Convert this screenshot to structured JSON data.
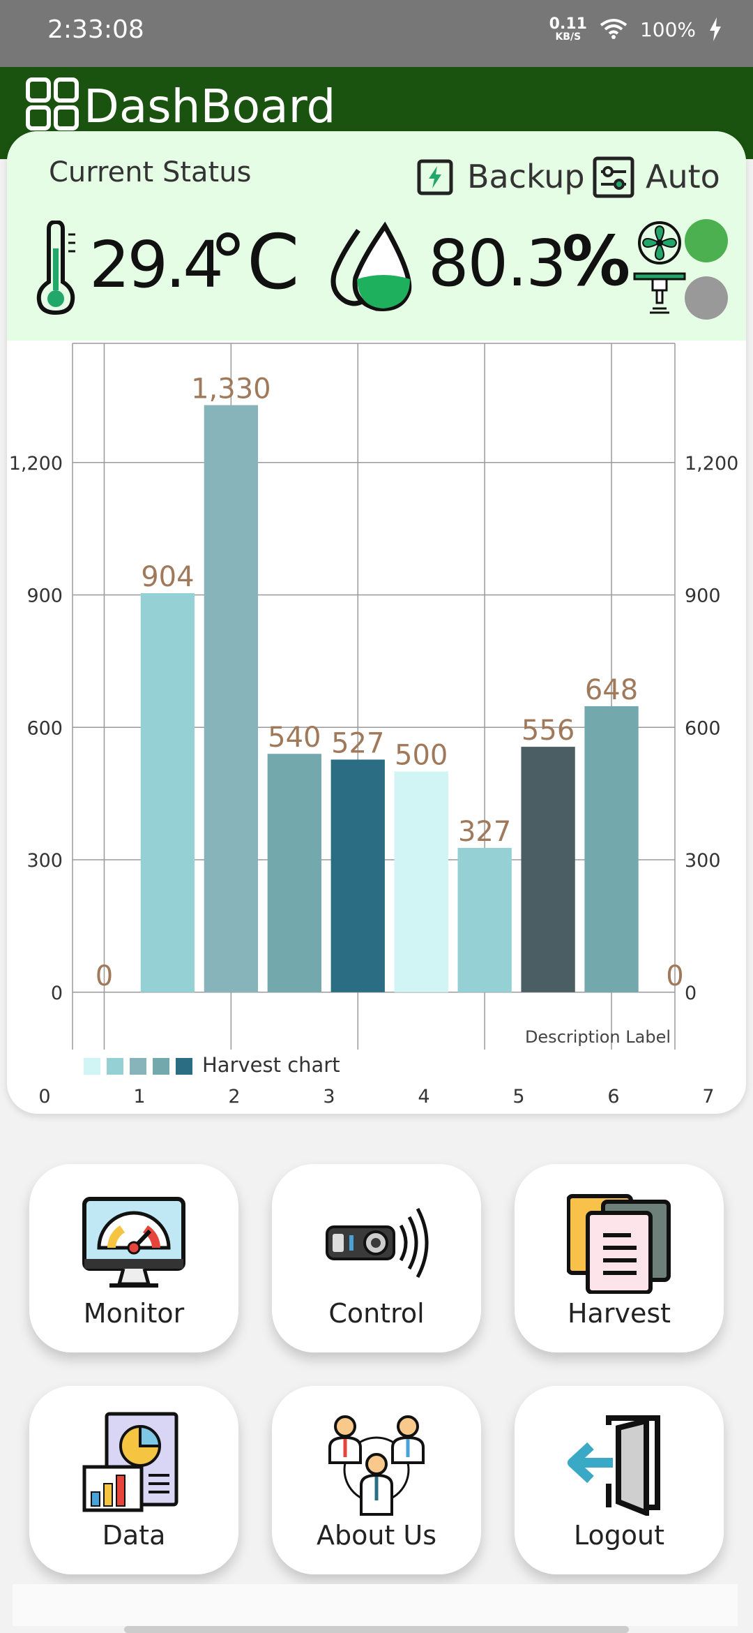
{
  "status_bar": {
    "time": "2:33:08",
    "net_speed": "0.11",
    "net_unit": "KB/S",
    "battery": "100%"
  },
  "app": {
    "title": "DashBoard",
    "header_color": "#1a5210"
  },
  "status": {
    "title": "Current Status",
    "backup_label": "Backup",
    "auto_label": "Auto",
    "temperature": "29.4",
    "temperature_unit": "°C",
    "humidity": "80.3",
    "humidity_unit": "%",
    "fan_state_color": "#4caf50",
    "sprinkler_state_color": "#999999"
  },
  "chart_data": {
    "type": "bar",
    "x": [
      0,
      1,
      2,
      3,
      4,
      5,
      6,
      7,
      8,
      9
    ],
    "values": [
      0,
      904,
      1330,
      540,
      527,
      500,
      327,
      556,
      648,
      0
    ],
    "value_labels": [
      "0",
      "904",
      "1,330",
      "540",
      "527",
      "500",
      "327",
      "556",
      "648",
      "0"
    ],
    "colors": [
      "#ffffff",
      "#95d1d4",
      "#87b4bb",
      "#73a9ad",
      "#2b6e84",
      "#d0f5f4",
      "#95d1d4",
      "#4a5e64",
      "#73a9ad",
      "#ffffff"
    ],
    "y_ticks": [
      "0",
      "300",
      "600",
      "900",
      "1,200"
    ],
    "x_ticks": [
      "0",
      "1",
      "2",
      "3",
      "4",
      "5",
      "6",
      "7"
    ],
    "ylim": [
      -130,
      1470
    ],
    "legend_label": "Harvest chart",
    "legend_colors": [
      "#d0f5f4",
      "#95d1d4",
      "#87b4bb",
      "#73a9ad",
      "#2b6e84"
    ],
    "description": "Description Label",
    "value_label_color": "#a0785a",
    "grid": true
  },
  "menu": [
    {
      "label": "Monitor",
      "icon": "monitor-gauge-icon"
    },
    {
      "label": "Control",
      "icon": "remote-control-icon"
    },
    {
      "label": "Harvest",
      "icon": "documents-icon"
    },
    {
      "label": "Data",
      "icon": "report-chart-icon"
    },
    {
      "label": "About Us",
      "icon": "team-icon"
    },
    {
      "label": "Logout",
      "icon": "logout-door-icon"
    }
  ]
}
